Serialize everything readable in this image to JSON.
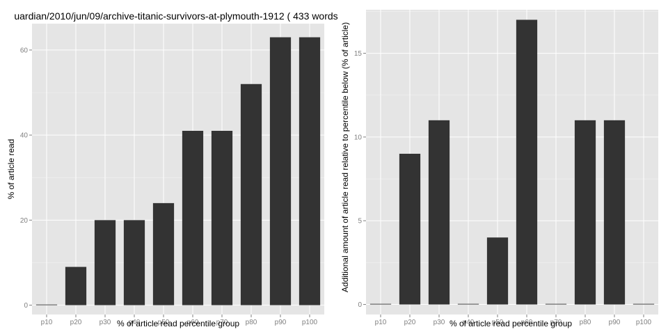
{
  "chart_data": [
    {
      "type": "bar",
      "title": "uardian/2010/jun/09/archive-titanic-survivors-at-plymouth-1912 ( 433 words",
      "xlabel": "% of article read percentile group",
      "ylabel": "% of article read",
      "categories": [
        "p10",
        "p20",
        "p30",
        "p40",
        "p50",
        "p60",
        "p70",
        "p80",
        "p90",
        "p100"
      ],
      "values": [
        0,
        9,
        20,
        20,
        24,
        41,
        41,
        52,
        63,
        63
      ],
      "ylim": [
        -2.2,
        66.2
      ],
      "yticks": [
        0,
        20,
        40,
        60
      ],
      "grid": true
    },
    {
      "type": "bar",
      "title": "",
      "xlabel": "% of article read percentile group",
      "ylabel": "Additional amount of article read relative to percentile below (% of article)",
      "categories": [
        "p10",
        "p20",
        "p30",
        "p40",
        "p50",
        "p60",
        "p70",
        "p80",
        "p90",
        "p100"
      ],
      "values": [
        0,
        9,
        11,
        0,
        4,
        17,
        0,
        11,
        11,
        0
      ],
      "ylim": [
        -0.6,
        17.6
      ],
      "yticks": [
        0,
        5,
        10,
        15
      ],
      "grid": true
    }
  ],
  "colors": {
    "panel_background": "#e5e5e5",
    "grid": "#ffffff",
    "bar_fill": "#333333",
    "tick_text": "#7f7f7f"
  }
}
